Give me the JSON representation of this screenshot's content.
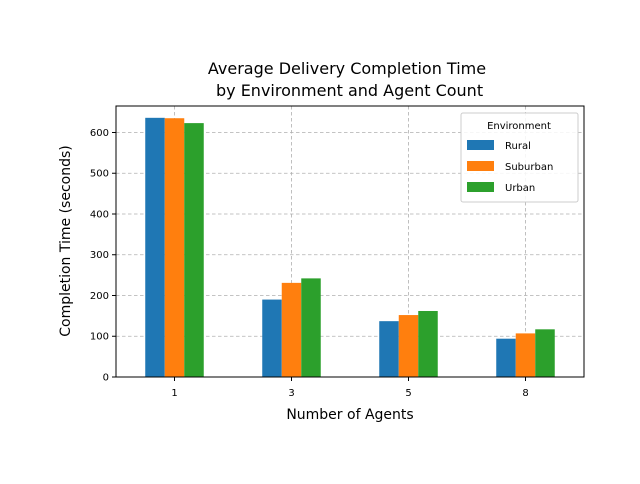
{
  "chart_data": {
    "type": "bar",
    "title_line1": "Average Delivery Completion Time",
    "title_line2": " by Environment and Agent Count",
    "xlabel": "Number of Agents",
    "ylabel": "Completion Time (seconds)",
    "categories": [
      "1",
      "3",
      "5",
      "8"
    ],
    "ylim": [
      0,
      665
    ],
    "yticks": [
      "0",
      "100",
      "200",
      "300",
      "400",
      "500",
      "600"
    ],
    "ytick_values": [
      0,
      100,
      200,
      300,
      400,
      500,
      600
    ],
    "grid": true,
    "legend": {
      "title": "Environment",
      "position": "top-right"
    },
    "series": [
      {
        "name": "Rural",
        "color": "#1f77b4",
        "values": [
          636,
          190,
          137,
          94
        ]
      },
      {
        "name": "Suburban",
        "color": "#ff7f0e",
        "values": [
          635,
          231,
          152,
          107
        ]
      },
      {
        "name": "Urban",
        "color": "#2ca02c",
        "values": [
          623,
          242,
          162,
          117
        ]
      }
    ]
  }
}
